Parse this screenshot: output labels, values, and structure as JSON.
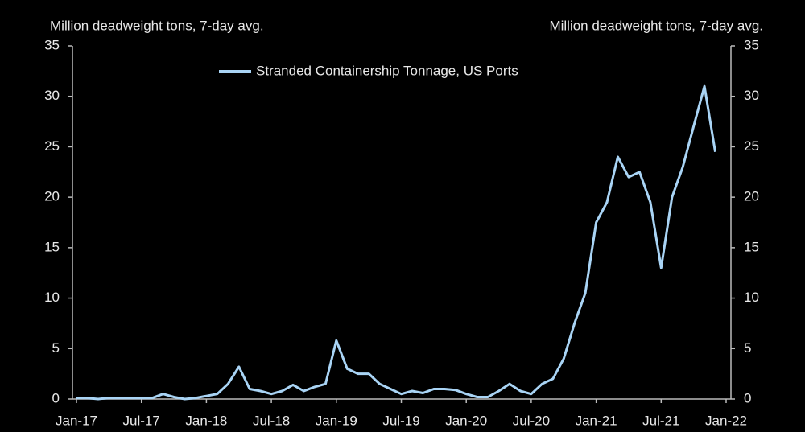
{
  "chart_data": {
    "type": "line",
    "y_axis_label": "Million deadweight  tons, 7-day avg.",
    "y2_axis_label": "Million deadweight  tons, 7-day  avg.",
    "x": [
      "2017-01",
      "2017-02",
      "2017-03",
      "2017-04",
      "2017-05",
      "2017-06",
      "2017-07",
      "2017-08",
      "2017-09",
      "2017-10",
      "2017-11",
      "2017-12",
      "2018-01",
      "2018-02",
      "2018-03",
      "2018-04",
      "2018-05",
      "2018-06",
      "2018-07",
      "2018-08",
      "2018-09",
      "2018-10",
      "2018-11",
      "2018-12",
      "2019-01",
      "2019-02",
      "2019-03",
      "2019-04",
      "2019-05",
      "2019-06",
      "2019-07",
      "2019-08",
      "2019-09",
      "2019-10",
      "2019-11",
      "2019-12",
      "2020-01",
      "2020-02",
      "2020-03",
      "2020-04",
      "2020-05",
      "2020-06",
      "2020-07",
      "2020-08",
      "2020-09",
      "2020-10",
      "2020-11",
      "2020-12",
      "2021-01",
      "2021-02",
      "2021-03",
      "2021-04",
      "2021-05",
      "2021-06",
      "2021-07",
      "2021-08",
      "2021-09",
      "2021-10",
      "2021-11",
      "2021-12"
    ],
    "series": [
      {
        "name": "Stranded Containership Tonnage, US Ports",
        "color": "#a9d4f5",
        "values": [
          0.1,
          0.1,
          0,
          0.1,
          0.1,
          0.1,
          0.1,
          0.1,
          0.5,
          0.2,
          0,
          0.1,
          0.3,
          0.5,
          1.5,
          3.2,
          1,
          0.8,
          0.5,
          0.8,
          1.4,
          0.8,
          1.2,
          1.5,
          5.8,
          3,
          2.5,
          2.5,
          1.5,
          1,
          0.5,
          0.8,
          0.6,
          1,
          1,
          0.9,
          0.5,
          0.2,
          0.2,
          0.8,
          1.5,
          0.8,
          0.5,
          1.5,
          2,
          4,
          7.5,
          10.5,
          17.5,
          19.5,
          24,
          22,
          22.5,
          19.5,
          13,
          20,
          23,
          27,
          31,
          24.5
        ]
      }
    ],
    "xlim": [
      "2017-01",
      "2022-01"
    ],
    "xticks": [
      {
        "value": "2017-01",
        "label": "Jan-17"
      },
      {
        "value": "2017-07",
        "label": "Jul-17"
      },
      {
        "value": "2018-01",
        "label": "Jan-18"
      },
      {
        "value": "2018-07",
        "label": "Jul-18"
      },
      {
        "value": "2019-01",
        "label": "Jan-19"
      },
      {
        "value": "2019-07",
        "label": "Jul-19"
      },
      {
        "value": "2020-01",
        "label": "Jan-20"
      },
      {
        "value": "2020-07",
        "label": "Jul-20"
      },
      {
        "value": "2021-01",
        "label": "Jan-21"
      },
      {
        "value": "2021-07",
        "label": "Jul-21"
      },
      {
        "value": "2022-01",
        "label": "Jan-22"
      }
    ],
    "ylim": [
      0,
      35
    ],
    "yticks": [
      0,
      5,
      10,
      15,
      20,
      25,
      30,
      35
    ],
    "y2lim": [
      0,
      35
    ],
    "y2ticks": [
      0,
      5,
      10,
      15,
      20,
      25,
      30,
      35
    ],
    "legend": "top"
  }
}
